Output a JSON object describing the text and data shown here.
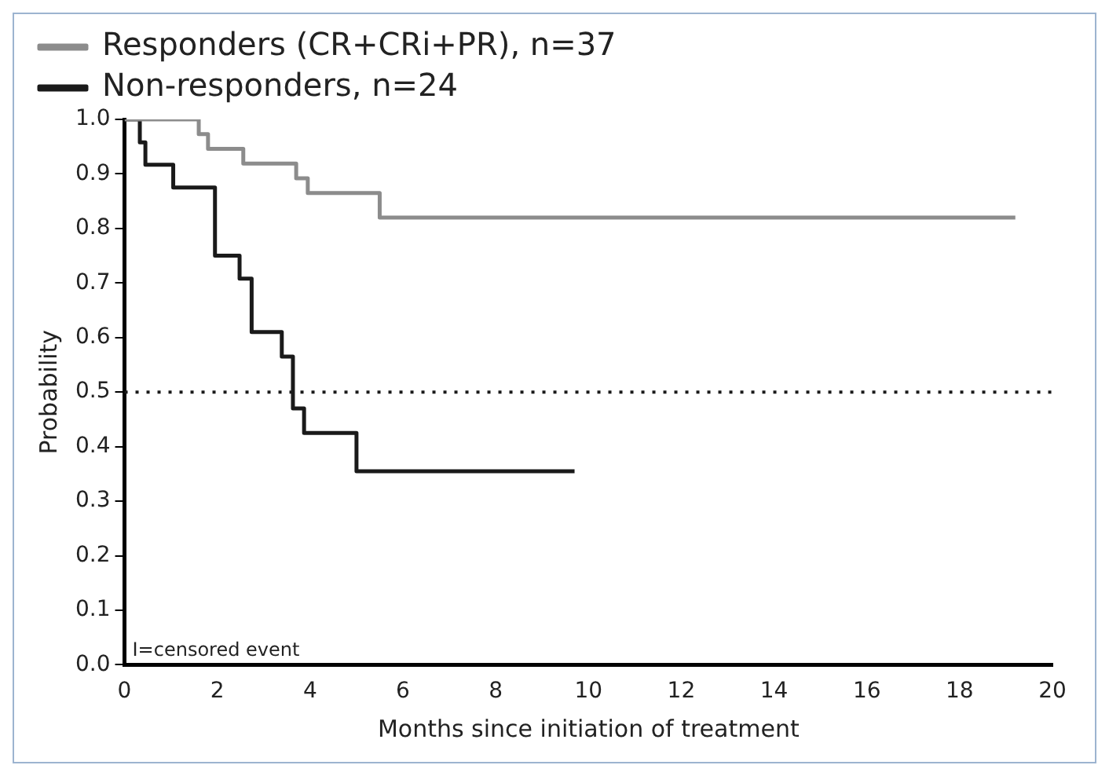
{
  "chart_data": {
    "type": "step",
    "xlabel": "Months since initiation of treatment",
    "ylabel": "Probability",
    "series": [
      {
        "name": "Responders (CR+CRi+PR), n=37",
        "color": "#8c8c8c",
        "x": [
          0,
          1.6,
          1.8,
          2.56,
          3.7,
          3.95,
          5.5,
          19.2
        ],
        "values": [
          1.0,
          0.973,
          0.946,
          0.919,
          0.892,
          0.865,
          0.82,
          0.82
        ]
      },
      {
        "name": "Non-responders, n=24",
        "color": "#1a1a1a",
        "x": [
          0,
          0.33,
          0.45,
          1.05,
          1.95,
          2.48,
          2.74,
          3.39,
          3.63,
          3.87,
          5.0,
          9.7
        ],
        "values": [
          1.0,
          0.958,
          0.917,
          0.875,
          0.75,
          0.708,
          0.61,
          0.565,
          0.47,
          0.425,
          0.355,
          0.355
        ]
      }
    ],
    "xlim": [
      0,
      20
    ],
    "xticks": [
      0,
      2,
      4,
      6,
      8,
      10,
      12,
      14,
      16,
      18,
      20
    ],
    "ylim": [
      0,
      1
    ],
    "yticks": [
      {
        "value": 0,
        "label": "0.0"
      },
      {
        "value": 0.1,
        "label": "0.1"
      },
      {
        "value": 0.2,
        "label": "0.2"
      },
      {
        "value": 0.3,
        "label": "0.3"
      },
      {
        "value": 0.4,
        "label": "0.4"
      },
      {
        "value": 0.5,
        "label": "0.5"
      },
      {
        "value": 0.6,
        "label": "0.6"
      },
      {
        "value": 0.7,
        "label": "0.7"
      },
      {
        "value": 0.8,
        "label": "0.8"
      },
      {
        "value": 0.9,
        "label": "0.9"
      },
      {
        "value": 1,
        "label": "1.0"
      }
    ],
    "ref_lines": [
      {
        "axis": "y",
        "value": 0.5,
        "line_style": "dotted",
        "color": "#1a1a1a"
      }
    ],
    "annotations": [
      "I=censored event"
    ],
    "legend": "top",
    "grid": false,
    "marker": "none"
  }
}
